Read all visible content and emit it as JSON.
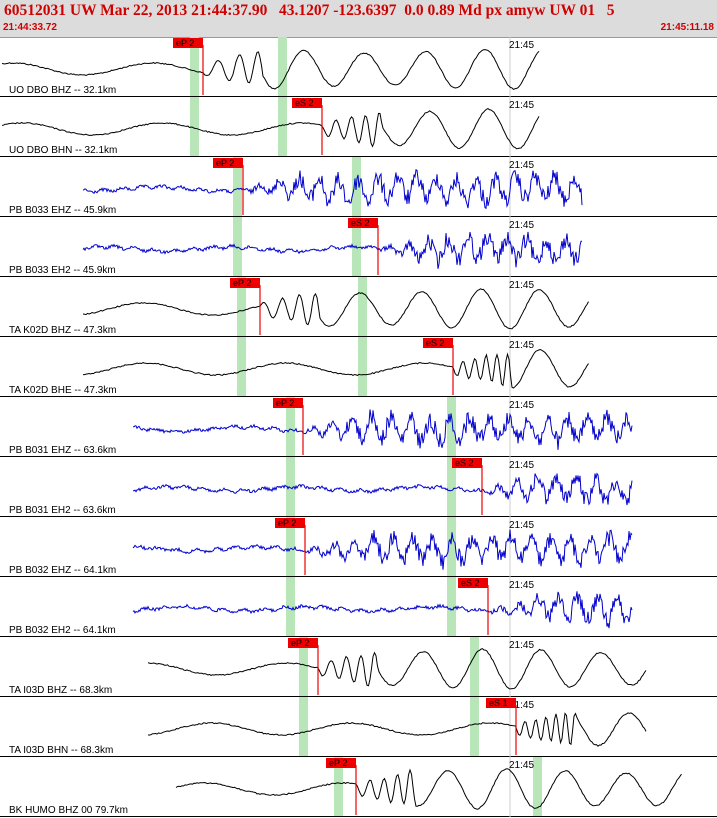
{
  "header": {
    "title": "60512031 UW Mar 22, 2013 21:44:37.90   43.1207 -123.6397  0.0 0.89 Md px amyw UW 01   5",
    "time_start": "21:44:33.72",
    "time_end": "21:45:11.18"
  },
  "minute_label": "21:45",
  "colors": {
    "header_bg": "#dcdcdc",
    "header_text": "#d00000",
    "pick_flag": "#ee0000",
    "highlight": "#b8e6b8",
    "trace_black": "#000000",
    "trace_blue": "#0000cc"
  },
  "traces": [
    {
      "label": "UO DBO BHZ -- 32.1km",
      "color": "black",
      "pick": "eP 2",
      "style": "lowfreq",
      "start": 0.0,
      "end": 0.8
    },
    {
      "label": "UO DBO BHN -- 32.1km",
      "color": "black",
      "pick": "eS 2",
      "style": "lowfreq",
      "start": 0.0,
      "end": 0.8
    },
    {
      "label": "PB B033 EHZ -- 45.9km",
      "color": "blue",
      "pick": "eP 2",
      "style": "highfreq",
      "start": 0.06,
      "end": 0.86
    },
    {
      "label": "PB B033 EH2 -- 45.9km",
      "color": "blue",
      "pick": "eS 2",
      "style": "highfreq",
      "start": 0.06,
      "end": 0.86
    },
    {
      "label": "TA K02D BHZ -- 47.3km",
      "color": "black",
      "pick": "eP 2",
      "style": "lowfreq",
      "start": 0.06,
      "end": 0.87
    },
    {
      "label": "TA K02D BHE -- 47.3km",
      "color": "black",
      "pick": "eS 2",
      "style": "lowfreq",
      "start": 0.06,
      "end": 0.87
    },
    {
      "label": "PB B031 EHZ -- 63.6km",
      "color": "blue",
      "pick": "eP 2",
      "style": "highfreq",
      "start": 0.13,
      "end": 0.93
    },
    {
      "label": "PB B031 EH2 -- 63.6km",
      "color": "blue",
      "pick": "eS 2",
      "style": "highfreq",
      "start": 0.13,
      "end": 0.93
    },
    {
      "label": "PB B032 EHZ -- 64.1km",
      "color": "blue",
      "pick": "eP 2",
      "style": "highfreq",
      "start": 0.13,
      "end": 0.93
    },
    {
      "label": "PB B032 EH2 -- 64.1km",
      "color": "blue",
      "pick": "eS 2",
      "style": "highfreq",
      "start": 0.13,
      "end": 0.93
    },
    {
      "label": "TA I03D BHZ -- 68.3km",
      "color": "black",
      "pick": "eP 2",
      "style": "lowfreq",
      "start": 0.15,
      "end": 0.95
    },
    {
      "label": "TA I03D BHN -- 68.3km",
      "color": "black",
      "pick": "eS 1",
      "style": "lowfreq",
      "start": 0.15,
      "end": 0.95
    },
    {
      "label": "BK HUMO BHZ 00 79.7km",
      "color": "black",
      "pick": "eP 2",
      "style": "lowfreq",
      "start": 0.19,
      "end": 1.0
    }
  ]
}
